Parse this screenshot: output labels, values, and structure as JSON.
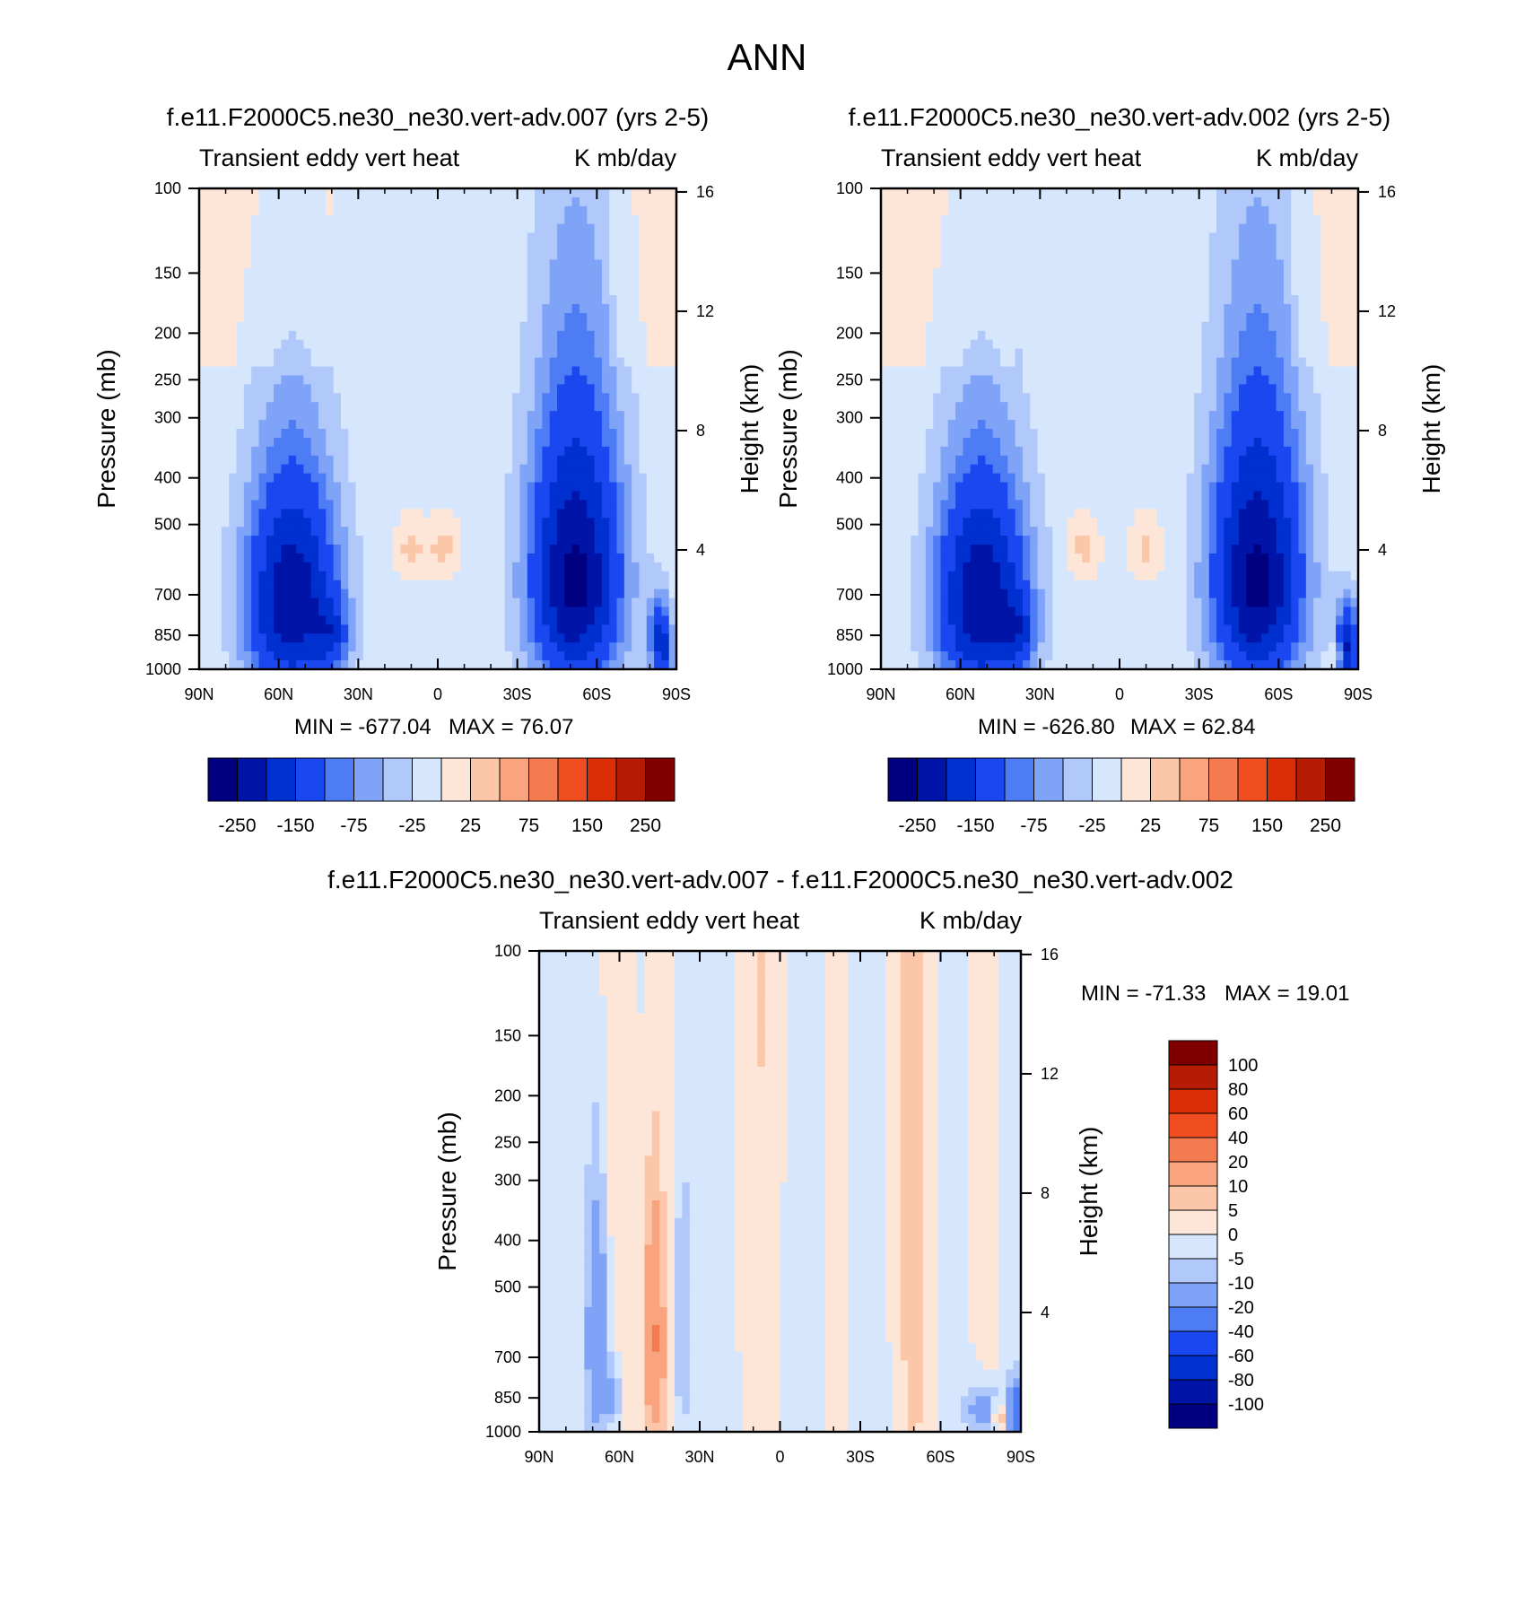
{
  "figure": {
    "title": "ANN"
  },
  "chart_data": [
    {
      "type": "heatmap",
      "title": "f.e11.F2000C5.ne30_ne30.vert-adv.007 (yrs 2-5)",
      "left_subtitle": "Transient eddy vert heat",
      "right_subtitle": "K mb/day",
      "ylabel": "Pressure (mb)",
      "y2label": "Height (km)",
      "xticks": [
        "90N",
        "60N",
        "30N",
        "0",
        "30S",
        "60S",
        "90S"
      ],
      "yticks": [
        "100",
        "150",
        "200",
        "250",
        "300",
        "400",
        "500",
        "700",
        "850",
        "1000"
      ],
      "y2ticks": [
        "16",
        "12",
        "8",
        "4"
      ],
      "min_label": "MIN = -677.04",
      "max_label": "MAX =  76.07",
      "legend_levels": [
        "-250",
        "-150",
        "-75",
        "-25",
        "25",
        "75",
        "150",
        "250"
      ],
      "blobs": [
        {
          "lat": 55,
          "p": 720,
          "sx": 12,
          "sp": 260,
          "amp": -240
        },
        {
          "lat": 40,
          "p": 850,
          "sx": 4,
          "sp": 90,
          "amp": -90
        },
        {
          "lat": -52,
          "p": 650,
          "sx": 12,
          "sp": 290,
          "amp": -260
        },
        {
          "lat": -84,
          "p": 900,
          "sx": 3,
          "sp": 120,
          "amp": -200
        },
        {
          "lat": -82,
          "p": 930,
          "sx": 2,
          "sp": 40,
          "amp": 60
        },
        {
          "lat": 10,
          "p": 560,
          "sx": 4,
          "sp": 50,
          "amp": 40
        },
        {
          "lat": -2,
          "p": 560,
          "sx": 4,
          "sp": 50,
          "amp": 40
        }
      ]
    },
    {
      "type": "heatmap",
      "title": "f.e11.F2000C5.ne30_ne30.vert-adv.002 (yrs 2-5)",
      "left_subtitle": "Transient eddy vert heat",
      "right_subtitle": "K mb/day",
      "ylabel": "Pressure (mb)",
      "y2label": "Height (km)",
      "xticks": [
        "90N",
        "60N",
        "30N",
        "0",
        "30S",
        "60S",
        "90S"
      ],
      "yticks": [
        "100",
        "150",
        "200",
        "250",
        "300",
        "400",
        "500",
        "700",
        "850",
        "1000"
      ],
      "y2ticks": [
        "16",
        "12",
        "8",
        "4"
      ],
      "min_label": "MIN = -626.80",
      "max_label": "MAX =  62.84",
      "legend_levels": [
        "-250",
        "-150",
        "-75",
        "-25",
        "25",
        "75",
        "150",
        "250"
      ],
      "blobs": [
        {
          "lat": 52,
          "p": 720,
          "sx": 12,
          "sp": 260,
          "amp": -240
        },
        {
          "lat": 38,
          "p": 840,
          "sx": 4,
          "sp": 90,
          "amp": -90
        },
        {
          "lat": -52,
          "p": 650,
          "sx": 12,
          "sp": 290,
          "amp": -260
        },
        {
          "lat": -86,
          "p": 900,
          "sx": 3,
          "sp": 120,
          "amp": -200
        },
        {
          "lat": -82,
          "p": 930,
          "sx": 2,
          "sp": 40,
          "amp": 60
        },
        {
          "lat": 14,
          "p": 560,
          "sx": 4,
          "sp": 50,
          "amp": 40
        },
        {
          "lat": -10,
          "p": 560,
          "sx": 4,
          "sp": 50,
          "amp": 40
        }
      ]
    },
    {
      "type": "heatmap",
      "title": "f.e11.F2000C5.ne30_ne30.vert-adv.007 - f.e11.F2000C5.ne30_ne30.vert-adv.002",
      "left_subtitle": "Transient eddy vert heat",
      "right_subtitle": "K mb/day",
      "ylabel": "Pressure (mb)",
      "y2label": "Height (km)",
      "xticks": [
        "90N",
        "60N",
        "30N",
        "0",
        "30S",
        "60S",
        "90S"
      ],
      "yticks": [
        "100",
        "150",
        "200",
        "250",
        "300",
        "400",
        "500",
        "700",
        "850",
        "1000"
      ],
      "y2ticks": [
        "16",
        "12",
        "8",
        "4"
      ],
      "min_label": "MIN = -71.33",
      "max_label": "MAX =  19.01",
      "legend_levels": [
        "100",
        "80",
        "60",
        "40",
        "20",
        "10",
        "5",
        "0",
        "-5",
        "-10",
        "-20",
        "-40",
        "-60",
        "-80",
        "-100"
      ],
      "blobs": [
        {
          "lat": 68,
          "p": 650,
          "sx": 3,
          "sp": 300,
          "amp": -22
        },
        {
          "lat": 47,
          "p": 650,
          "sx": 3,
          "sp": 280,
          "amp": 22
        },
        {
          "lat": 36,
          "p": 600,
          "sx": 3,
          "sp": 300,
          "amp": -12
        },
        {
          "lat": 62,
          "p": 850,
          "sx": 2,
          "sp": 100,
          "amp": -14
        },
        {
          "lat": -76,
          "p": 900,
          "sx": 5,
          "sp": 80,
          "amp": -15
        },
        {
          "lat": -82,
          "p": 920,
          "sx": 2,
          "sp": 40,
          "amp": 15
        },
        {
          "lat": -88,
          "p": 900,
          "sx": 2,
          "sp": 80,
          "amp": -30
        },
        {
          "lat": 18,
          "p": 300,
          "sx": 10,
          "sp": 500,
          "amp": 3
        },
        {
          "lat": -45,
          "p": 300,
          "sx": 6,
          "sp": 500,
          "amp": 3
        },
        {
          "lat": 0,
          "p": 600,
          "sx": 15,
          "sp": 400,
          "amp": -2
        }
      ]
    }
  ],
  "palettes": {
    "abs": [
      "#000080",
      "#0015a8",
      "#0030d0",
      "#1a47f0",
      "#4d7cf5",
      "#7fa3f7",
      "#b0c8fa",
      "#d6e6fd",
      "#fde6d8",
      "#fcc6a8",
      "#f9a47e",
      "#f47a50",
      "#f04e20",
      "#db2e06",
      "#b51c03",
      "#800000"
    ],
    "diff": [
      "#000080",
      "#0015a8",
      "#0030d0",
      "#1a47f0",
      "#4d7cf5",
      "#7fa3f7",
      "#b0c8fa",
      "#d6e6fd",
      "#fde6d8",
      "#fcc6a8",
      "#f9a47e",
      "#f47a50",
      "#f04e20",
      "#db2e06",
      "#b51c03",
      "#800000"
    ]
  },
  "thresholds": {
    "abs": [
      -250,
      -200,
      -150,
      -100,
      -75,
      -50,
      -25,
      0,
      25,
      50,
      75,
      100,
      150,
      200,
      250
    ],
    "diff": [
      -100,
      -80,
      -60,
      -40,
      -20,
      -10,
      -5,
      0,
      5,
      10,
      20,
      40,
      60,
      80,
      100
    ]
  }
}
